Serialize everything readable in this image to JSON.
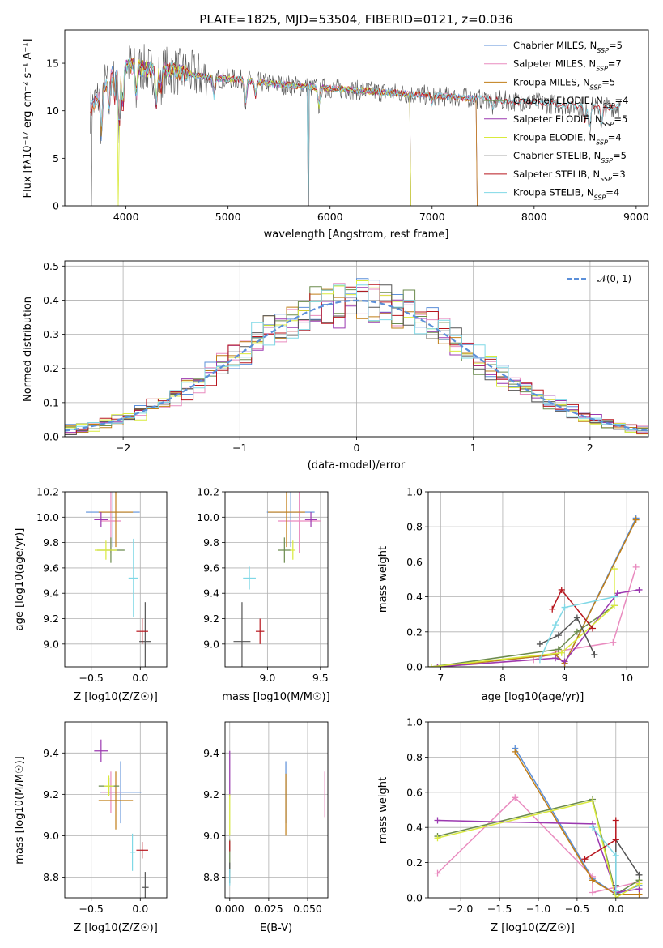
{
  "figure": {
    "title": "PLATE=1825, MJD=53504, FIBERID=0121, z=0.036"
  },
  "series_colors": [
    "#5b8fd9",
    "#e98bbf",
    "#c07d16",
    "#6b8b4d",
    "#9b38b0",
    "#d9ea3c",
    "#555555",
    "#b8161e",
    "#7fd8e6"
  ],
  "chart_data": [
    {
      "type": "line",
      "panel": "spectrum",
      "title": "PLATE=1825, MJD=53504, FIBERID=0121, z=0.036",
      "xlabel": "wavelength [Angstrom, rest frame]",
      "ylabel": "Flux [fλ10⁻¹⁷ erg cm⁻² s⁻¹ A⁻¹]",
      "xlim": [
        3400,
        9120
      ],
      "ylim": [
        0,
        18.5
      ],
      "xticks": [
        4000,
        5000,
        6000,
        7000,
        8000,
        9000
      ],
      "yticks": [
        0,
        5,
        10,
        15
      ],
      "legend_position": "top-right",
      "grid": false,
      "series": [
        {
          "name": "Chabrier MILES, N_SSP=5",
          "x_range": [
            3650,
            7450
          ]
        },
        {
          "name": "Salpeter MILES, N_SSP=7",
          "x_range": [
            3650,
            7450
          ]
        },
        {
          "name": "Kroupa MILES, N_SSP=5",
          "x_range": [
            3650,
            7450
          ]
        },
        {
          "name": "Chabrier ELODIE, N_SSP=4",
          "x_range": [
            3900,
            6800
          ]
        },
        {
          "name": "Salpeter ELODIE, N_SSP=5",
          "x_range": [
            3900,
            6800
          ]
        },
        {
          "name": "Kroupa ELODIE, N_SSP=4",
          "x_range": [
            3900,
            6800
          ]
        },
        {
          "name": "Chabrier STELIB, N_SSP=5",
          "x_range": [
            3650,
            8850
          ]
        },
        {
          "name": "Salpeter STELIB, N_SSP=3",
          "x_range": [
            3650,
            8850
          ]
        },
        {
          "name": "Kroupa STELIB, N_SSP=4",
          "x_range": [
            3650,
            8850
          ]
        }
      ],
      "continuum": [
        [
          3650,
          10.2
        ],
        [
          3720,
          11.2
        ],
        [
          3800,
          12.8
        ],
        [
          3900,
          14.6
        ],
        [
          4000,
          14.8
        ],
        [
          4100,
          14.6
        ],
        [
          4200,
          14.4
        ],
        [
          4300,
          14.1
        ],
        [
          4400,
          14.3
        ],
        [
          4500,
          14.1
        ],
        [
          4700,
          13.7
        ],
        [
          4900,
          13.4
        ],
        [
          5100,
          13.3
        ],
        [
          5400,
          12.9
        ],
        [
          5800,
          12.5
        ],
        [
          6200,
          12.2
        ],
        [
          6600,
          11.9
        ],
        [
          7000,
          11.6
        ],
        [
          7400,
          11.3
        ],
        [
          7800,
          11.0
        ],
        [
          8200,
          10.7
        ],
        [
          8600,
          10.4
        ],
        [
          8850,
          10.4
        ]
      ],
      "dips": [
        [
          3760,
          4.5
        ],
        [
          3835,
          3.0
        ],
        [
          3890,
          3.0
        ],
        [
          3933,
          6.5
        ],
        [
          3968,
          5.0
        ],
        [
          4101,
          3.0
        ],
        [
          4300,
          3.5
        ],
        [
          4340,
          2.0
        ],
        [
          4861,
          2.0
        ],
        [
          5175,
          2.5
        ],
        [
          5270,
          1.5
        ],
        [
          5890,
          2.0
        ],
        [
          7000,
          0.8
        ],
        [
          7600,
          1.2
        ],
        [
          8498,
          1.5
        ],
        [
          8542,
          2.5
        ],
        [
          8662,
          2.0
        ]
      ],
      "drops": [
        {
          "x": 3660,
          "to": 0
        },
        {
          "x": 3920,
          "to": 0
        },
        {
          "x": 5790,
          "to": 0
        },
        {
          "x": 6790,
          "to": 0
        },
        {
          "x": 7440,
          "to": 0
        }
      ]
    },
    {
      "type": "line",
      "panel": "residuals",
      "xlabel": "(data-model)/error",
      "ylabel": "Normed distribution",
      "xlim": [
        -2.5,
        2.5
      ],
      "ylim": [
        0,
        0.515
      ],
      "xticks": [
        -2,
        -1,
        0,
        1,
        2
      ],
      "yticks": [
        0.0,
        0.1,
        0.2,
        0.3,
        0.4,
        0.5
      ],
      "grid": true,
      "legend": [
        "𝒩(0, 1)"
      ],
      "legend_position": "top-right",
      "bin_width": 0.1
    },
    {
      "type": "scatter",
      "panel": "age-vs-metallicity",
      "xlabel": "Z [log10(Z/Z☉)]",
      "ylabel": "age [log10(age/yr)]",
      "xlim": [
        -0.77,
        0.27
      ],
      "ylim": [
        8.82,
        10.2
      ],
      "xticks": [
        -0.5,
        0.0
      ],
      "yticks": [
        9.0,
        9.2,
        9.4,
        9.6,
        9.8,
        10.0,
        10.2
      ],
      "grid": true,
      "points": [
        {
          "s": 0,
          "x": -0.28,
          "y": 10.04,
          "xerr": 0.55,
          "yerr": 0.55
        },
        {
          "s": 1,
          "x": -0.3,
          "y": 9.97,
          "xerr": 0.2,
          "yerr": 0.5
        },
        {
          "s": 2,
          "x": -0.25,
          "y": 10.04,
          "xerr": 0.35,
          "yerr": 0.55
        },
        {
          "s": 3,
          "x": -0.3,
          "y": 9.74,
          "xerr": 0.28,
          "yerr": 0.2
        },
        {
          "s": 4,
          "x": -0.4,
          "y": 9.98,
          "xerr": 0.14,
          "yerr": 0.12
        },
        {
          "s": 5,
          "x": -0.35,
          "y": 9.74,
          "xerr": 0.23,
          "yerr": 0.15
        },
        {
          "s": 6,
          "x": 0.05,
          "y": 9.02,
          "xerr": 0.12,
          "yerr": 0.62
        },
        {
          "s": 7,
          "x": 0.02,
          "y": 9.1,
          "xerr": 0.12,
          "yerr": 0.2
        },
        {
          "s": 8,
          "x": -0.07,
          "y": 9.52,
          "xerr": 0.1,
          "yerr": 0.62
        }
      ]
    },
    {
      "type": "scatter",
      "panel": "age-vs-mass",
      "xlabel": "mass [log10(M/M☉)]",
      "ylabel": "",
      "xlim": [
        8.6,
        9.57
      ],
      "ylim": [
        8.82,
        10.2
      ],
      "xticks": [
        9.0,
        9.5
      ],
      "yticks": [
        9.0,
        9.2,
        9.4,
        9.6,
        9.8,
        10.0,
        10.2
      ],
      "grid": true,
      "points": [
        {
          "s": 0,
          "x": 9.22,
          "y": 10.04,
          "xerr": 0.45,
          "yerr": 0.55
        },
        {
          "s": 1,
          "x": 9.3,
          "y": 9.97,
          "xerr": 0.4,
          "yerr": 0.5
        },
        {
          "s": 2,
          "x": 9.18,
          "y": 10.04,
          "xerr": 0.35,
          "yerr": 0.55
        },
        {
          "s": 3,
          "x": 9.16,
          "y": 9.74,
          "xerr": 0.12,
          "yerr": 0.2
        },
        {
          "s": 4,
          "x": 9.41,
          "y": 9.98,
          "xerr": 0.11,
          "yerr": 0.12
        },
        {
          "s": 5,
          "x": 9.24,
          "y": 9.74,
          "xerr": 0.05,
          "yerr": 0.15
        },
        {
          "s": 6,
          "x": 8.76,
          "y": 9.02,
          "xerr": 0.16,
          "yerr": 0.62
        },
        {
          "s": 7,
          "x": 8.93,
          "y": 9.1,
          "xerr": 0.08,
          "yerr": 0.2
        },
        {
          "s": 8,
          "x": 8.83,
          "y": 9.52,
          "xerr": 0.12,
          "yerr": 0.18
        }
      ]
    },
    {
      "type": "line",
      "panel": "mass-weight-vs-age",
      "xlabel": "age [log10(age/yr)]",
      "ylabel": "mass weight",
      "xlim": [
        6.8,
        10.35
      ],
      "ylim": [
        0,
        1.0
      ],
      "xticks": [
        7,
        8,
        9,
        10
      ],
      "yticks": [
        0.0,
        0.2,
        0.4,
        0.6,
        0.8,
        1.0
      ],
      "grid": true,
      "series": [
        {
          "s": 0,
          "x": [
            6.95,
            8.85,
            9.0,
            10.15
          ],
          "y": [
            0.0,
            0.07,
            0.02,
            0.85
          ]
        },
        {
          "s": 1,
          "x": [
            6.95,
            8.5,
            8.9,
            9.78,
            10.15
          ],
          "y": [
            0.0,
            0.04,
            0.09,
            0.14,
            0.57
          ]
        },
        {
          "s": 2,
          "x": [
            6.95,
            8.85,
            9.0,
            10.15
          ],
          "y": [
            0.0,
            0.07,
            0.02,
            0.84
          ]
        },
        {
          "s": 3,
          "x": [
            6.85,
            8.9,
            9.2,
            9.8
          ],
          "y": [
            0.0,
            0.1,
            0.2,
            0.35
          ]
        },
        {
          "s": 4,
          "x": [
            6.95,
            8.85,
            9.0,
            9.85,
            10.2
          ],
          "y": [
            0.0,
            0.05,
            0.03,
            0.42,
            0.44
          ]
        },
        {
          "s": 5,
          "x": [
            6.85,
            8.95,
            9.8,
            9.8
          ],
          "y": [
            0.0,
            0.08,
            0.35,
            0.56
          ]
        },
        {
          "s": 6,
          "x": [
            8.6,
            8.9,
            9.2,
            9.48
          ],
          "y": [
            0.13,
            0.18,
            0.28,
            0.07
          ]
        },
        {
          "s": 7,
          "x": [
            8.8,
            8.95,
            9.45
          ],
          "y": [
            0.33,
            0.44,
            0.22
          ]
        },
        {
          "s": 8,
          "x": [
            8.6,
            8.85,
            9.0,
            9.8
          ],
          "y": [
            0.04,
            0.24,
            0.34,
            0.4
          ]
        }
      ]
    },
    {
      "type": "scatter",
      "panel": "mass-vs-metallicity",
      "xlabel": "Z [log10(Z/Z☉)]",
      "ylabel": "mass [log10(M/M☉)]",
      "xlim": [
        -0.77,
        0.27
      ],
      "ylim": [
        8.7,
        9.55
      ],
      "xticks": [
        -0.5,
        0.0
      ],
      "yticks": [
        8.8,
        9.0,
        9.2,
        9.4
      ],
      "grid": true,
      "points": [
        {
          "s": 0,
          "x": -0.2,
          "y": 9.21,
          "xerr": 0.42,
          "yerr": 0.3
        },
        {
          "s": 1,
          "x": -0.3,
          "y": 9.21,
          "xerr": 0.2,
          "yerr": 0.2
        },
        {
          "s": 2,
          "x": -0.25,
          "y": 9.17,
          "xerr": 0.35,
          "yerr": 0.28
        },
        {
          "s": 3,
          "x": -0.32,
          "y": 9.24,
          "xerr": 0.21,
          "yerr": 0.08
        },
        {
          "s": 4,
          "x": -0.4,
          "y": 9.41,
          "xerr": 0.14,
          "yerr": 0.11
        },
        {
          "s": 5,
          "x": -0.32,
          "y": 9.24,
          "xerr": 0.1,
          "yerr": 0.1
        },
        {
          "s": 6,
          "x": 0.05,
          "y": 8.75,
          "xerr": 0.07,
          "yerr": 0.15
        },
        {
          "s": 7,
          "x": 0.02,
          "y": 8.93,
          "xerr": 0.12,
          "yerr": 0.08
        },
        {
          "s": 8,
          "x": -0.08,
          "y": 8.92,
          "xerr": 0.06,
          "yerr": 0.18
        }
      ]
    },
    {
      "type": "scatter",
      "panel": "mass-vs-reddening",
      "xlabel": "E(B-V)",
      "ylabel": "",
      "xlim": [
        -0.003,
        0.063
      ],
      "ylim": [
        8.7,
        9.55
      ],
      "xticks": [
        0.0,
        0.025,
        0.05
      ],
      "xtick_labels": [
        "0.000",
        "0.025",
        "0.050"
      ],
      "yticks": [
        8.8,
        9.0,
        9.2,
        9.4
      ],
      "grid": true,
      "points": [
        {
          "s": 0,
          "x": 0.036,
          "y": 9.21,
          "yerr": 0.3
        },
        {
          "s": 1,
          "x": 0.061,
          "y": 9.2,
          "yerr": 0.22
        },
        {
          "s": 2,
          "x": 0.036,
          "y": 9.15,
          "yerr": 0.3
        },
        {
          "s": 3,
          "x": 0.0,
          "y": 8.9,
          "yerr": 0.16
        },
        {
          "s": 4,
          "x": 0.0,
          "y": 9.3,
          "yerr": 0.22
        },
        {
          "s": 5,
          "x": 0.0,
          "y": 9.1,
          "yerr": 0.2
        },
        {
          "s": 6,
          "x": 0.0,
          "y": 8.82,
          "yerr": 0.1
        },
        {
          "s": 7,
          "x": 0.0,
          "y": 8.95,
          "yerr": 0.05
        },
        {
          "s": 8,
          "x": 0.0,
          "y": 8.8,
          "yerr": 0.08
        }
      ]
    },
    {
      "type": "line",
      "panel": "mass-weight-vs-metallicity",
      "xlabel": "Z [log10(Z/Z☉)]",
      "ylabel": "mass weight",
      "xlim": [
        -2.42,
        0.42
      ],
      "ylim": [
        0,
        1.0
      ],
      "xticks": [
        -2.0,
        -1.5,
        -1.0,
        -0.5,
        0.0
      ],
      "yticks": [
        0.0,
        0.2,
        0.4,
        0.6,
        0.8,
        1.0
      ],
      "grid": true,
      "series": [
        {
          "s": 0,
          "x": [
            -1.3,
            -0.3,
            0.0,
            0.3
          ],
          "y": [
            0.85,
            0.11,
            0.02,
            0.07
          ]
        },
        {
          "s": 1,
          "x": [
            -2.3,
            -1.3,
            -0.3,
            -0.3,
            0.3
          ],
          "y": [
            0.14,
            0.57,
            0.12,
            0.03,
            0.09
          ]
        },
        {
          "s": 2,
          "x": [
            -1.3,
            -0.3,
            0.0,
            0.3
          ],
          "y": [
            0.83,
            0.1,
            0.02,
            0.02
          ]
        },
        {
          "s": 3,
          "x": [
            -2.3,
            -0.3,
            0.0,
            0.3
          ],
          "y": [
            0.35,
            0.56,
            0.02,
            0.1
          ]
        },
        {
          "s": 4,
          "x": [
            -2.3,
            -0.3,
            0.0,
            0.3
          ],
          "y": [
            0.44,
            0.42,
            0.03,
            0.05
          ]
        },
        {
          "s": 5,
          "x": [
            -2.3,
            -0.3,
            0.0,
            0.3
          ],
          "y": [
            0.34,
            0.55,
            0.0,
            0.08
          ]
        },
        {
          "s": 6,
          "x": [
            0.0,
            0.0,
            0.3
          ],
          "y": [
            0.07,
            0.33,
            0.13
          ]
        },
        {
          "s": 7,
          "x": [
            -0.4,
            0.0,
            0.0
          ],
          "y": [
            0.22,
            0.33,
            0.44
          ]
        },
        {
          "s": 8,
          "x": [
            -0.3,
            0.0,
            0.0
          ],
          "y": [
            0.4,
            0.24,
            0.04
          ]
        }
      ]
    }
  ]
}
